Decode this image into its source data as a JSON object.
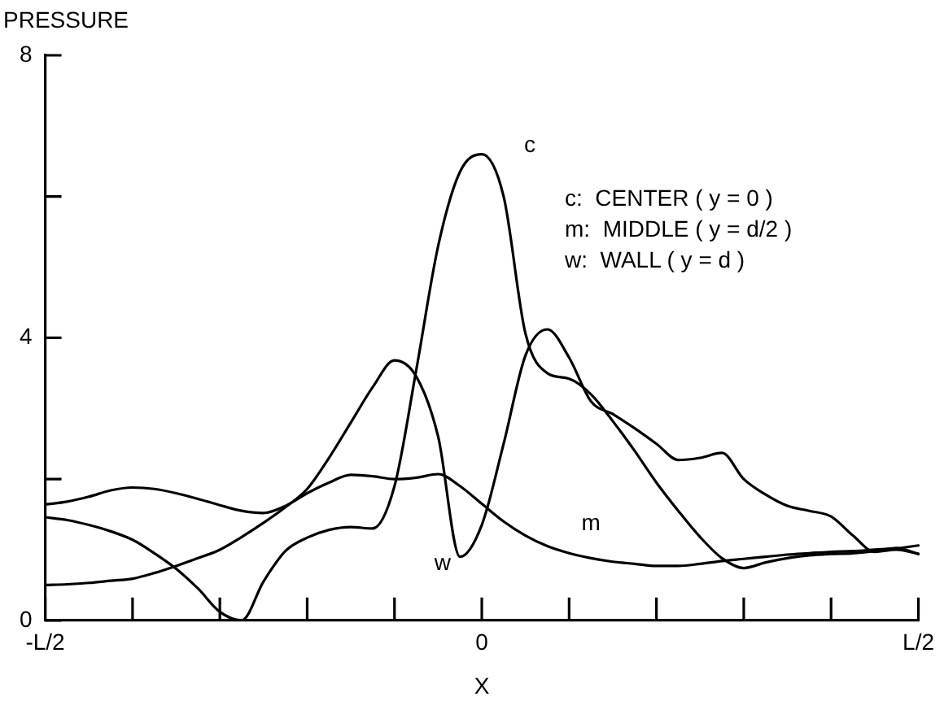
{
  "chart_data": {
    "type": "line",
    "ylabel": "PRESSURE",
    "xlabel": "X",
    "categories": [
      "-L/2",
      null,
      null,
      null,
      null,
      null,
      null,
      null,
      null,
      null,
      null,
      null,
      null,
      null,
      null,
      null,
      null,
      null,
      null,
      null,
      "0",
      null,
      null,
      null,
      null,
      null,
      null,
      null,
      null,
      null,
      null,
      null,
      null,
      null,
      null,
      null,
      null,
      null,
      null,
      null,
      "L/2"
    ],
    "ylim": [
      0,
      8
    ],
    "yticks": [
      0,
      {
        "value": 2,
        "label": null
      },
      4,
      {
        "value": 6,
        "label": null
      },
      8
    ],
    "grid": false,
    "legend": false,
    "marker": "none",
    "line_style": "solid",
    "series": [
      {
        "color": "#000000",
        "values": [
          1.46,
          1.42,
          1.35,
          1.26,
          1.14,
          0.95,
          0.73,
          0.45,
          0.12,
          0,
          0.55,
          0.98,
          1.17,
          1.28,
          1.32,
          1.3,
          1.9,
          3.55,
          5.3,
          6.35,
          6.6,
          6.0,
          4.06,
          3.5,
          3.42,
          3.2,
          2.82,
          2.4,
          1.95,
          1.55,
          1.18,
          0.88,
          0.74,
          0.82,
          0.88,
          0.92,
          0.94,
          0.95,
          0.98,
          1.02,
          0.94
        ]
      },
      {
        "color": "#000000",
        "values": [
          1.64,
          1.68,
          1.75,
          1.84,
          1.88,
          1.86,
          1.8,
          1.72,
          1.63,
          1.55,
          1.52,
          1.62,
          1.8,
          1.95,
          2.06,
          2.04,
          2.0,
          2.02,
          2.07,
          1.9,
          1.65,
          1.4,
          1.2,
          1.05,
          0.95,
          0.88,
          0.83,
          0.8,
          0.77,
          0.77,
          0.8,
          0.84,
          0.87,
          0.9,
          0.93,
          0.95,
          0.97,
          0.98,
          1.0,
          1.02,
          1.06
        ]
      },
      {
        "color": "#000000",
        "values": [
          0.5,
          0.51,
          0.53,
          0.56,
          0.59,
          0.67,
          0.77,
          0.88,
          1.0,
          1.18,
          1.38,
          1.6,
          1.86,
          2.3,
          2.8,
          3.3,
          3.68,
          3.45,
          2.6,
          0.9,
          1.35,
          2.5,
          3.75,
          4.12,
          3.72,
          3.1,
          2.92,
          2.72,
          2.5,
          2.27,
          2.3,
          2.37,
          2.0,
          1.78,
          1.62,
          1.55,
          1.47,
          1.2,
          0.97,
          1.0,
          0.94
        ]
      }
    ],
    "annotations": [
      "c",
      "m",
      "w",
      "c:  CENTER ( y = 0 )",
      "m:  MIDDLE ( y = d/2 )",
      "w:  WALL ( y = d )"
    ]
  }
}
